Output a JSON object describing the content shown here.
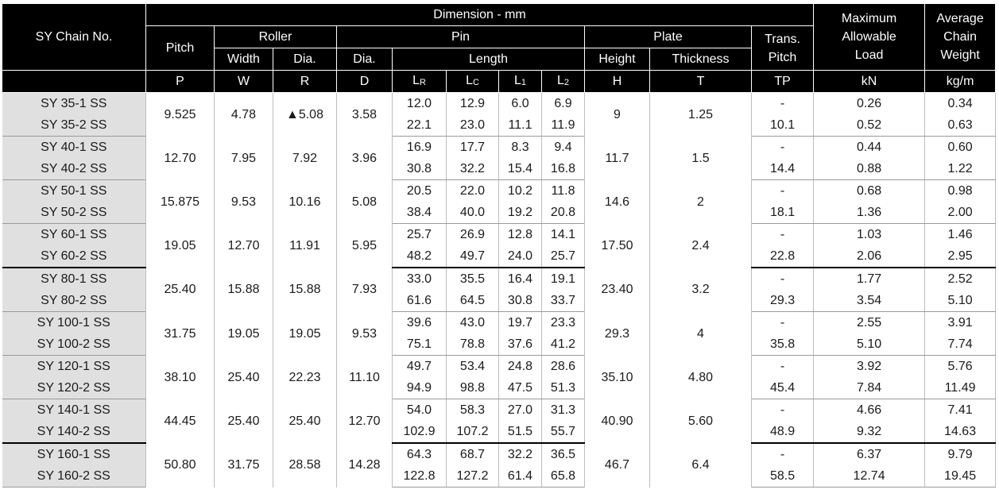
{
  "headers": {
    "chain_no": "SY Chain No.",
    "dimension": "Dimension - mm",
    "pitch": "Pitch",
    "roller": "Roller",
    "pin": "Pin",
    "plate": "Plate",
    "trans_pitch": "Trans. Pitch",
    "max_load": "Maximum Allowable Load",
    "avg_weight": "Average Chain Weight",
    "width": "Width",
    "roller_dia": "Dia.",
    "pin_dia": "Dia.",
    "length": "Length",
    "height": "Height",
    "thickness": "Thickness",
    "sym_p": "P",
    "sym_w": "W",
    "sym_r": "R",
    "sym_d": "D",
    "sym_lr_main": "L",
    "sym_lr_sub": "R",
    "sym_lc_main": "L",
    "sym_lc_sub": "C",
    "sym_l1_main": "L",
    "sym_l1_sub": "1",
    "sym_l2_main": "L",
    "sym_l2_sub": "2",
    "sym_h": "H",
    "sym_t": "T",
    "sym_tp": "TP",
    "unit_load": "kN",
    "unit_weight": "kg/m"
  },
  "rows": [
    {
      "chain1": "SY 35-1 SS",
      "chain2": "SY 35-2 SS",
      "p": "9.525",
      "w": "4.78",
      "r": "▲5.08",
      "d": "3.58",
      "lr1": "12.0",
      "lr2": "22.1",
      "lc1": "12.9",
      "lc2": "23.0",
      "l11": "6.0",
      "l12": "11.1",
      "l21": "6.9",
      "l22": "11.9",
      "h": "9",
      "t": "1.25",
      "tp1": "-",
      "tp2": "10.1",
      "load1": "0.26",
      "load2": "0.52",
      "wt1": "0.34",
      "wt2": "0.63"
    },
    {
      "chain1": "SY 40-1 SS",
      "chain2": "SY 40-2 SS",
      "p": "12.70",
      "w": "7.95",
      "r": "7.92",
      "d": "3.96",
      "lr1": "16.9",
      "lr2": "30.8",
      "lc1": "17.7",
      "lc2": "32.2",
      "l11": "8.3",
      "l12": "15.4",
      "l21": "9.4",
      "l22": "16.8",
      "h": "11.7",
      "t": "1.5",
      "tp1": "-",
      "tp2": "14.4",
      "load1": "0.44",
      "load2": "0.88",
      "wt1": "0.60",
      "wt2": "1.22"
    },
    {
      "chain1": "SY 50-1 SS",
      "chain2": "SY 50-2 SS",
      "p": "15.875",
      "w": "9.53",
      "r": "10.16",
      "d": "5.08",
      "lr1": "20.5",
      "lr2": "38.4",
      "lc1": "22.0",
      "lc2": "40.0",
      "l11": "10.2",
      "l12": "19.2",
      "l21": "11.8",
      "l22": "20.8",
      "h": "14.6",
      "t": "2",
      "tp1": "-",
      "tp2": "18.1",
      "load1": "0.68",
      "load2": "1.36",
      "wt1": "0.98",
      "wt2": "2.00"
    },
    {
      "chain1": "SY 60-1 SS",
      "chain2": "SY 60-2 SS",
      "p": "19.05",
      "w": "12.70",
      "r": "11.91",
      "d": "5.95",
      "lr1": "25.7",
      "lr2": "48.2",
      "lc1": "26.9",
      "lc2": "49.7",
      "l11": "12.8",
      "l12": "24.0",
      "l21": "14.1",
      "l22": "25.7",
      "h": "17.50",
      "t": "2.4",
      "tp1": "-",
      "tp2": "22.8",
      "load1": "1.03",
      "load2": "2.06",
      "wt1": "1.46",
      "wt2": "2.95"
    },
    {
      "chain1": "SY 80-1 SS",
      "chain2": "SY 80-2 SS",
      "p": "25.40",
      "w": "15.88",
      "r": "15.88",
      "d": "7.93",
      "lr1": "33.0",
      "lr2": "61.6",
      "lc1": "35.5",
      "lc2": "64.5",
      "l11": "16.4",
      "l12": "30.8",
      "l21": "19.1",
      "l22": "33.7",
      "h": "23.40",
      "t": "3.2",
      "tp1": "-",
      "tp2": "29.3",
      "load1": "1.77",
      "load2": "3.54",
      "wt1": "2.52",
      "wt2": "5.10"
    },
    {
      "chain1": "SY 100-1 SS",
      "chain2": "SY 100-2 SS",
      "p": "31.75",
      "w": "19.05",
      "r": "19.05",
      "d": "9.53",
      "lr1": "39.6",
      "lr2": "75.1",
      "lc1": "43.0",
      "lc2": "78.8",
      "l11": "19.7",
      "l12": "37.6",
      "l21": "23.3",
      "l22": "41.2",
      "h": "29.3",
      "t": "4",
      "tp1": "-",
      "tp2": "35.8",
      "load1": "2.55",
      "load2": "5.10",
      "wt1": "3.91",
      "wt2": "7.74"
    },
    {
      "chain1": "SY 120-1 SS",
      "chain2": "SY 120-2 SS",
      "p": "38.10",
      "w": "25.40",
      "r": "22.23",
      "d": "11.10",
      "lr1": "49.7",
      "lr2": "94.9",
      "lc1": "53.4",
      "lc2": "98.8",
      "l11": "24.8",
      "l12": "47.5",
      "l21": "28.6",
      "l22": "51.3",
      "h": "35.10",
      "t": "4.80",
      "tp1": "-",
      "tp2": "45.4",
      "load1": "3.92",
      "load2": "7.84",
      "wt1": "5.76",
      "wt2": "11.49"
    },
    {
      "chain1": "SY 140-1 SS",
      "chain2": "SY 140-2 SS",
      "p": "44.45",
      "w": "25.40",
      "r": "25.40",
      "d": "12.70",
      "lr1": "54.0",
      "lr2": "102.9",
      "lc1": "58.3",
      "lc2": "107.2",
      "l11": "27.0",
      "l12": "51.5",
      "l21": "31.3",
      "l22": "55.7",
      "h": "40.90",
      "t": "5.60",
      "tp1": "-",
      "tp2": "48.9",
      "load1": "4.66",
      "load2": "9.32",
      "wt1": "7.41",
      "wt2": "14.63"
    },
    {
      "chain1": "SY 160-1 SS",
      "chain2": "SY 160-2 SS",
      "p": "50.80",
      "w": "31.75",
      "r": "28.58",
      "d": "14.28",
      "lr1": "64.3",
      "lr2": "122.8",
      "lc1": "68.7",
      "lc2": "127.2",
      "l11": "32.2",
      "l12": "61.4",
      "l21": "36.5",
      "l22": "65.8",
      "h": "46.7",
      "t": "6.4",
      "tp1": "-",
      "tp2": "58.5",
      "load1": "6.37",
      "load2": "12.74",
      "wt1": "9.79",
      "wt2": "19.45"
    }
  ],
  "thick_after_groups": [
    3,
    7
  ]
}
